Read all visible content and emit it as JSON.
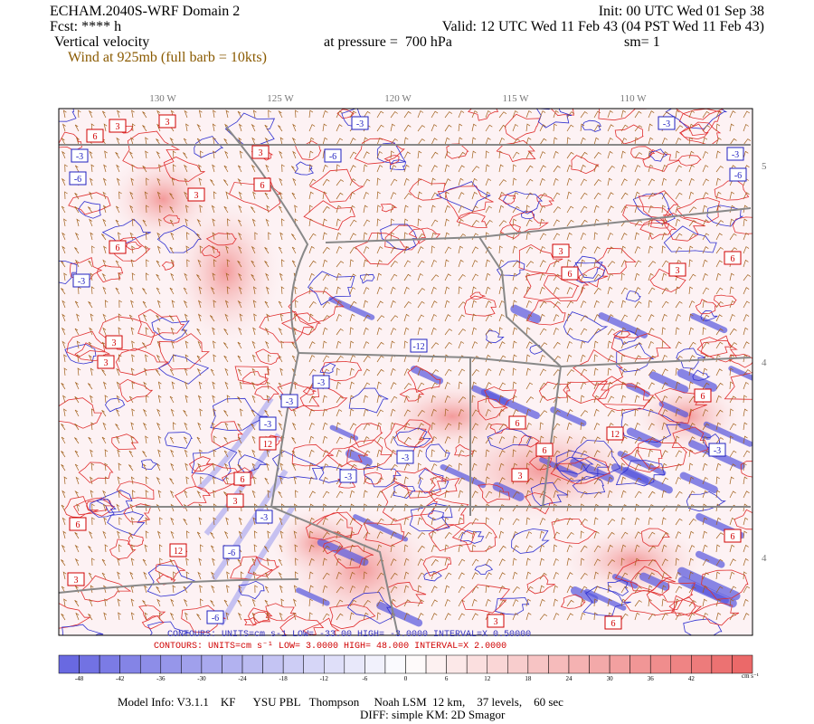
{
  "header": {
    "title": "ECHAM.2040S-WRF Domain 2",
    "forecast": "Fcst: **** h",
    "field": "Vertical velocity",
    "overlay": "Wind at 925mb (full barb = 10kts)",
    "init": "Init: 00 UTC Wed 01 Sep 38",
    "valid": "Valid: 12 UTC Wed 11 Feb 43 (04 PST Wed 11 Feb 43)",
    "pressure": "at pressure =  700 hPa",
    "smoothing": "sm= 1"
  },
  "map": {
    "lon_labels": [
      "130 W",
      "125 W",
      "120 W",
      "115 W",
      "110 W"
    ],
    "lat_labels": [
      "5",
      "4",
      "4"
    ],
    "contour_labels": [
      "-3",
      "-3",
      "6",
      "3",
      "3",
      "3",
      "-6",
      "-3",
      "-6",
      "-3",
      "-6",
      "6",
      "3",
      "6",
      "-3",
      "3",
      "3",
      "6",
      "6",
      "3",
      "3",
      "-12",
      "-3",
      "-3",
      "-3",
      "12",
      "6",
      "6",
      "12",
      "6",
      "-3",
      "-3",
      "6",
      "3",
      "-3",
      "6",
      "3",
      "-3",
      "12",
      "-6",
      "3",
      "-6",
      "6",
      "3",
      "6"
    ]
  },
  "contour_info": {
    "negative": "CONTOURS:  UNITS=cm s-1  LOW= -33.00   HIGH= -3.0000   INTERVAL=X 0.50000",
    "positive": "CONTOURS:  UNITS=cm s⁻¹  LOW=  3.0000   HIGH=  48.000   INTERVAL=X  2.0000"
  },
  "colorbar": {
    "ticks": [
      -48,
      -42,
      -36,
      -30,
      -24,
      -18,
      -12,
      -6,
      0,
      6,
      12,
      18,
      24,
      30,
      36,
      42
    ],
    "units": "cm s⁻¹"
  },
  "footer": {
    "model_info": "Model Info: V3.1.1    KF      YSU PBL   Thompson     Noah LSM  12 km,    37 levels,    60 sec",
    "diff": "DIFF: simple KM: 2D Smagor"
  }
}
